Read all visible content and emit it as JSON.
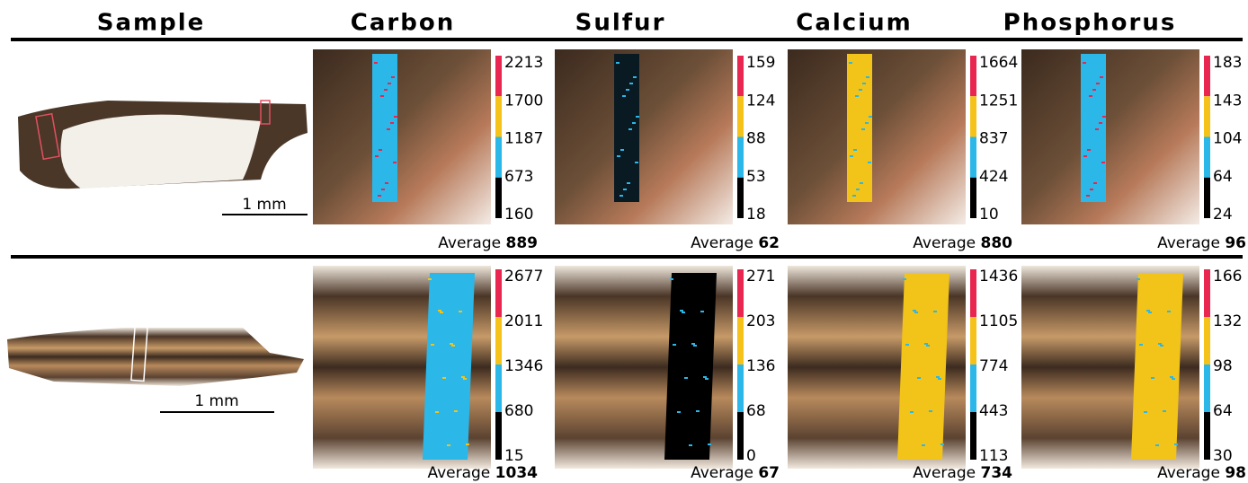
{
  "header": {
    "columns": [
      "Sample",
      "Carbon",
      "Sulfur",
      "Calcium",
      "Phosphorus"
    ]
  },
  "average_label": "Average",
  "rows": [
    {
      "scale_bar": "1 mm",
      "maps": [
        {
          "colorbar_ticks": [
            2213,
            1700,
            1187,
            673,
            160
          ],
          "average": 889
        },
        {
          "colorbar_ticks": [
            159,
            124,
            88,
            53,
            18
          ],
          "average": 62
        },
        {
          "colorbar_ticks": [
            1664,
            1251,
            837,
            424,
            10
          ],
          "average": 880
        },
        {
          "colorbar_ticks": [
            183,
            143,
            104,
            64,
            24
          ],
          "average": 96
        }
      ]
    },
    {
      "scale_bar": "1 mm",
      "maps": [
        {
          "colorbar_ticks": [
            2677,
            2011,
            1346,
            680,
            15
          ],
          "average": 1034
        },
        {
          "colorbar_ticks": [
            271,
            203,
            136,
            68,
            0
          ],
          "average": 67
        },
        {
          "colorbar_ticks": [
            1436,
            1105,
            774,
            443,
            113
          ],
          "average": 734
        },
        {
          "colorbar_ticks": [
            166,
            132,
            98,
            64,
            30
          ],
          "average": 98
        }
      ]
    }
  ]
}
